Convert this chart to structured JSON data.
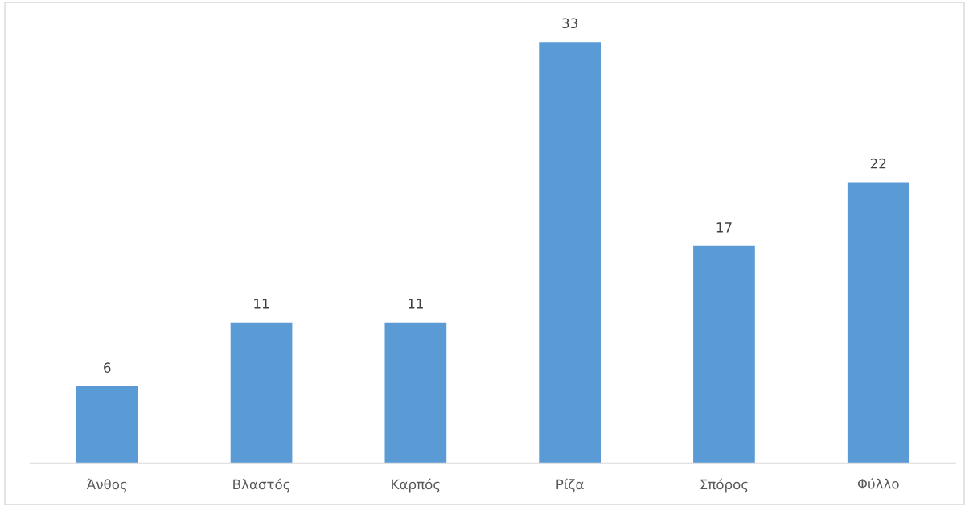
{
  "chart_data": {
    "type": "bar",
    "categories": [
      "Άνθος",
      "Βλαστός",
      "Καρπός",
      "Ρίζα",
      "Σπόρος",
      "Φύλλο"
    ],
    "values": [
      6,
      11,
      11,
      33,
      17,
      22
    ],
    "color": "#5b9bd5",
    "data_labels": true,
    "grid": false,
    "legend": false
  }
}
